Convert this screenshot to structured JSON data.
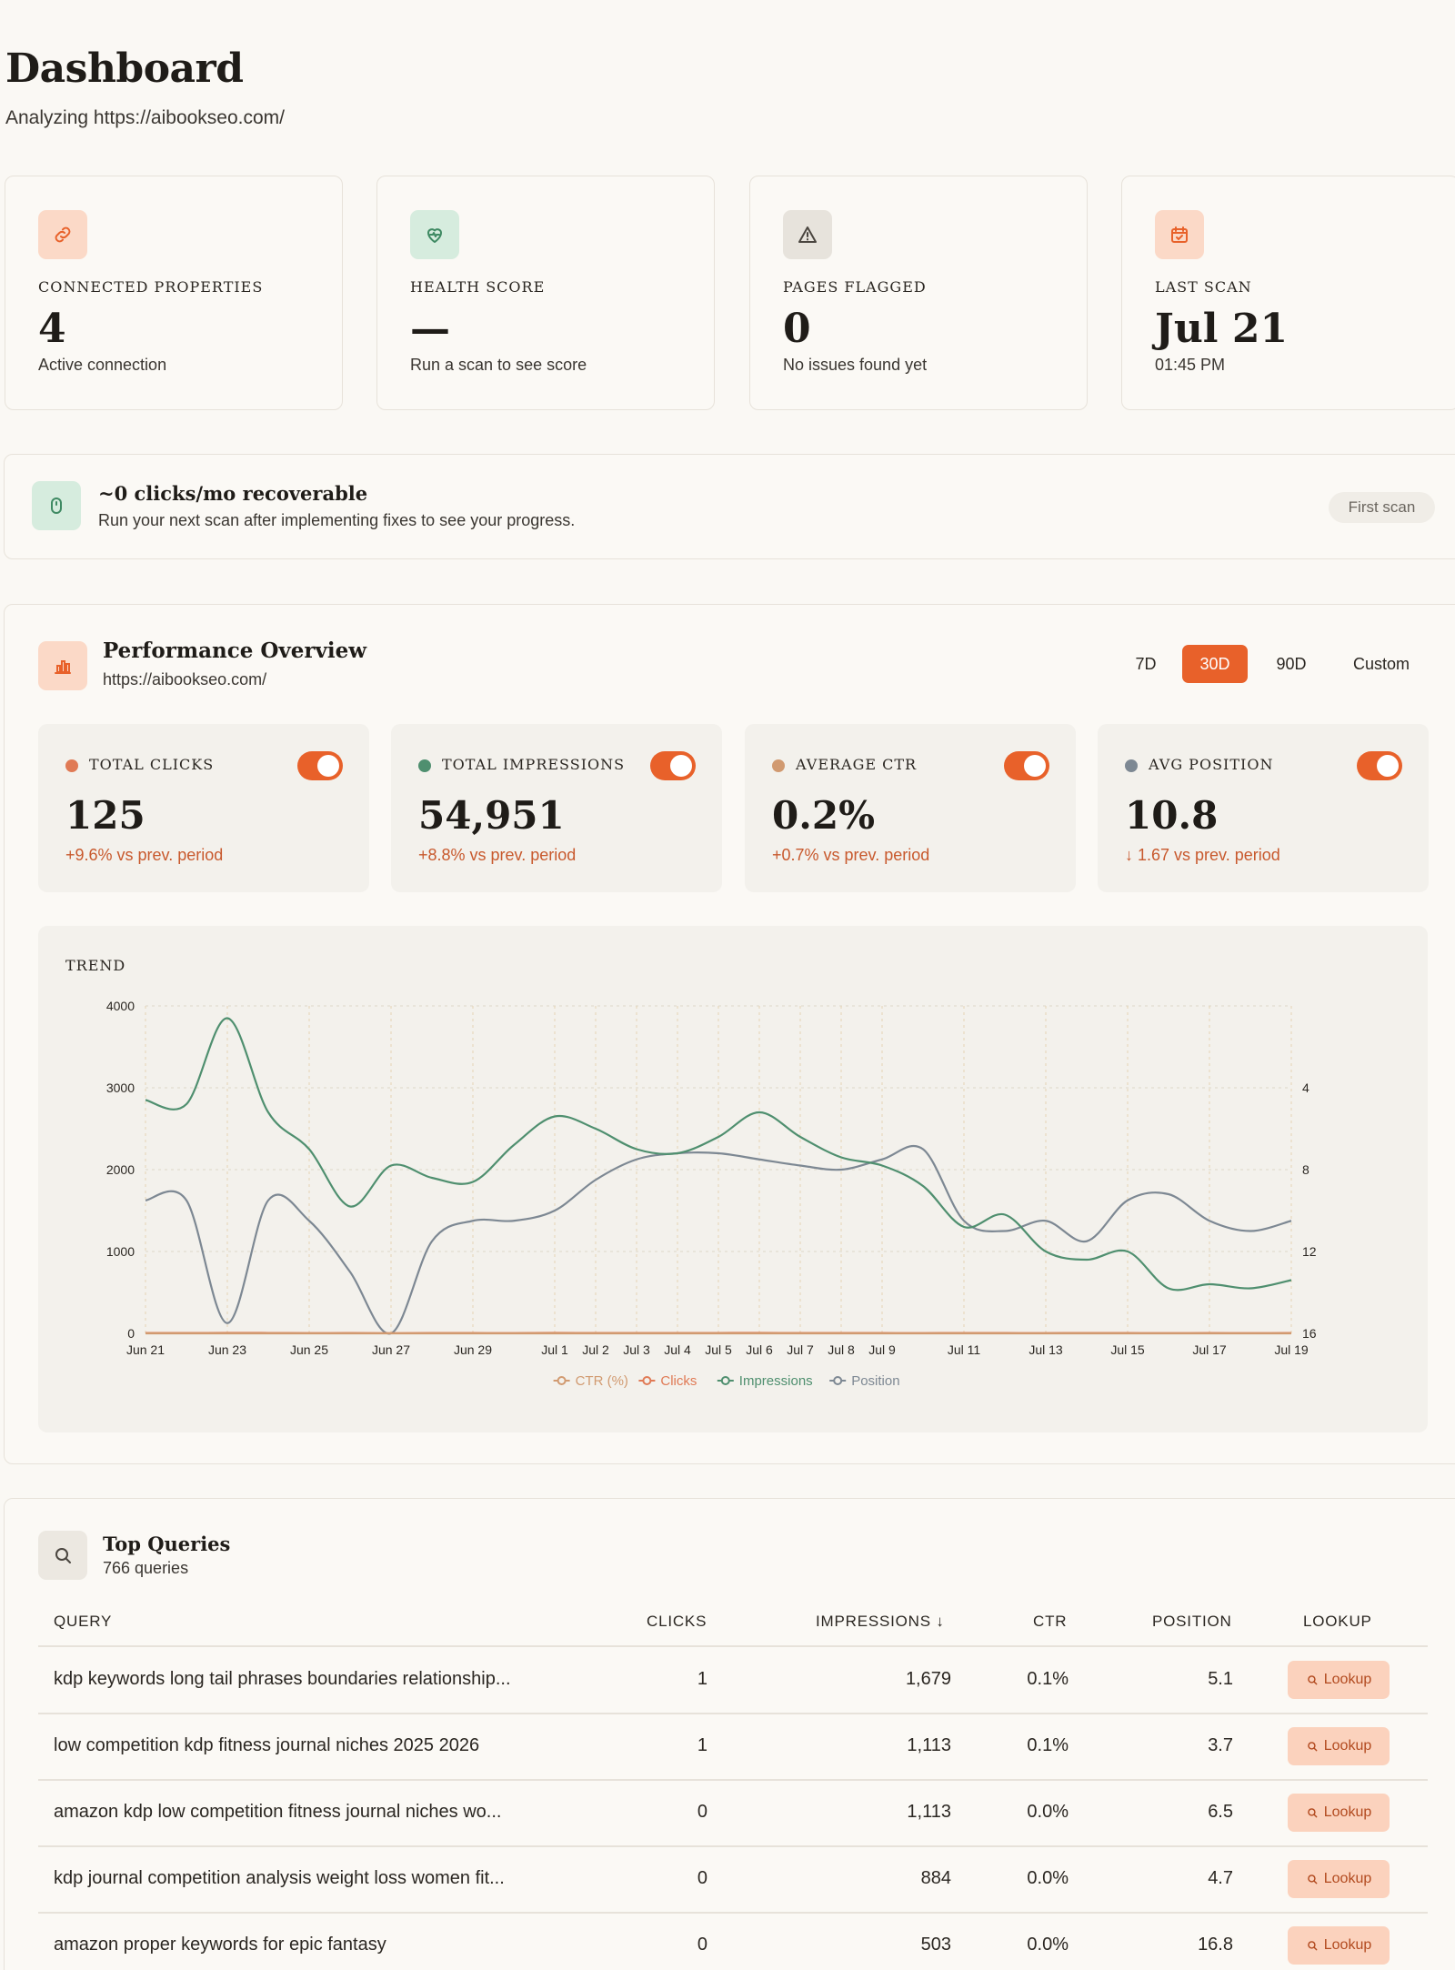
{
  "header": {
    "title": "Dashboard",
    "subtitle": "Analyzing https://aibookseo.com/"
  },
  "stats": [
    {
      "label": "Connected Properties",
      "value": "4",
      "sub": "Active connection",
      "icon": "link-icon",
      "icon_bg": "#fbd9c7",
      "icon_color": "#e8612a"
    },
    {
      "label": "Health Score",
      "value": "—",
      "sub": "Run a scan to see score",
      "icon": "heart-pulse-icon",
      "icon_bg": "#d6ecde",
      "icon_color": "#3f8a63"
    },
    {
      "label": "Pages Flagged",
      "value": "0",
      "sub": "No issues found yet",
      "icon": "warning-icon",
      "icon_bg": "#e7e3dc",
      "icon_color": "#4a453f"
    },
    {
      "label": "Last Scan",
      "value": "Jul 21",
      "sub": "01:45 PM",
      "icon": "calendar-icon",
      "icon_bg": "#fbd9c7",
      "icon_color": "#e8612a"
    }
  ],
  "banner": {
    "title": "~0 clicks/mo recoverable",
    "description": "Run your next scan after implementing fixes to see your progress.",
    "pill": "First scan",
    "icon": "mouse-icon"
  },
  "performance": {
    "title": "Performance Overview",
    "url": "https://aibookseo.com/",
    "ranges": [
      "7D",
      "30D",
      "90D",
      "Custom"
    ],
    "active_range": "30D",
    "metrics": [
      {
        "label": "Total Clicks",
        "value": "125",
        "delta": "+9.6% vs prev. period",
        "dot_color": "#e07a55",
        "enabled": true
      },
      {
        "label": "Total Impressions",
        "value": "54,951",
        "delta": "+8.8% vs prev. period",
        "dot_color": "#4f8f6f",
        "enabled": true
      },
      {
        "label": "Average CTR",
        "value": "0.2%",
        "delta": "+0.7% vs prev. period",
        "dot_color": "#d19a70",
        "enabled": true
      },
      {
        "label": "Avg Position",
        "value": "10.8",
        "delta": "↓ 1.67 vs prev. period",
        "dot_color": "#7d8893",
        "enabled": true
      }
    ],
    "trend_label": "TREND"
  },
  "chart_data": {
    "type": "line",
    "title": "TREND",
    "x": [
      "Jun 21",
      "Jun 22",
      "Jun 23",
      "Jun 24",
      "Jun 25",
      "Jun 26",
      "Jun 27",
      "Jun 28",
      "Jun 29",
      "Jun 30",
      "Jul 1",
      "Jul 2",
      "Jul 3",
      "Jul 4",
      "Jul 5",
      "Jul 6",
      "Jul 7",
      "Jul 8",
      "Jul 9",
      "Jul 10",
      "Jul 11",
      "Jul 12",
      "Jul 13",
      "Jul 14",
      "Jul 15",
      "Jul 16",
      "Jul 17",
      "Jul 18",
      "Jul 19"
    ],
    "x_tick_labels": [
      "Jun 21",
      "Jun 23",
      "Jun 25",
      "Jun 27",
      "Jun 29",
      "Jul 1",
      "Jul 2",
      "Jul 3",
      "Jul 4",
      "Jul 5",
      "Jul 6",
      "Jul 7",
      "Jul 8",
      "Jul 9",
      "Jul 11",
      "Jul 13",
      "Jul 15",
      "Jul 17",
      "Jul 19"
    ],
    "y_left": {
      "ticks": [
        0,
        1000,
        2000,
        3000,
        4000
      ],
      "range": [
        0,
        4000
      ]
    },
    "y_right": {
      "ticks": [
        4,
        8,
        12,
        16
      ],
      "range": [
        0,
        16
      ],
      "inverted": true
    },
    "series": [
      {
        "name": "CTR (%)",
        "color": "#d19a70",
        "axis": "left",
        "values": [
          0,
          0,
          0,
          0,
          0,
          0,
          0,
          0,
          0,
          0,
          0,
          0,
          0,
          0,
          0,
          0,
          0,
          0,
          0,
          0,
          0,
          0,
          0,
          0,
          0,
          0,
          0,
          0,
          0
        ]
      },
      {
        "name": "Clicks",
        "color": "#e07a55",
        "axis": "left",
        "values": [
          5,
          4,
          6,
          5,
          3,
          4,
          2,
          5,
          4,
          3,
          6,
          4,
          5,
          4,
          5,
          6,
          4,
          5,
          4,
          3,
          5,
          4,
          3,
          5,
          4,
          3,
          4,
          3,
          4
        ]
      },
      {
        "name": "Impressions",
        "color": "#4f8f6f",
        "axis": "left",
        "values": [
          2850,
          2800,
          3850,
          2700,
          2250,
          1550,
          2050,
          1900,
          1850,
          2300,
          2650,
          2500,
          2250,
          2200,
          2400,
          2700,
          2400,
          2150,
          2050,
          1800,
          1300,
          1450,
          1000,
          900,
          1000,
          550,
          600,
          550,
          650
        ]
      },
      {
        "name": "Position",
        "color": "#7d8893",
        "axis": "right",
        "values": [
          9.5,
          9.5,
          15.5,
          9.5,
          10.5,
          13,
          16,
          11.5,
          10.5,
          10.5,
          10,
          8.5,
          7.5,
          7.2,
          7.2,
          7.5,
          7.8,
          8,
          7.5,
          7,
          10.5,
          11,
          10.5,
          11.5,
          9.5,
          9.2,
          10.5,
          11,
          10.5
        ]
      }
    ],
    "legend_position": "bottom-center",
    "grid": true
  },
  "queries": {
    "title": "Top Queries",
    "count": "766 queries",
    "columns": [
      "QUERY",
      "CLICKS",
      "IMPRESSIONS ↓",
      "CTR",
      "POSITION",
      "LOOKUP"
    ],
    "lookup_label": "Lookup",
    "rows": [
      {
        "query": "kdp keywords long tail phrases boundaries relationship...",
        "clicks": "1",
        "impressions": "1,679",
        "ctr": "0.1%",
        "position": "5.1"
      },
      {
        "query": "low competition kdp fitness journal niches 2025 2026",
        "clicks": "1",
        "impressions": "1,113",
        "ctr": "0.1%",
        "position": "3.7"
      },
      {
        "query": "amazon kdp low competition fitness journal niches wo...",
        "clicks": "0",
        "impressions": "1,113",
        "ctr": "0.0%",
        "position": "6.5"
      },
      {
        "query": "kdp journal competition analysis weight loss women fit...",
        "clicks": "0",
        "impressions": "884",
        "ctr": "0.0%",
        "position": "4.7"
      },
      {
        "query": "amazon proper keywords for epic fantasy",
        "clicks": "0",
        "impressions": "503",
        "ctr": "0.0%",
        "position": "16.8"
      }
    ]
  }
}
